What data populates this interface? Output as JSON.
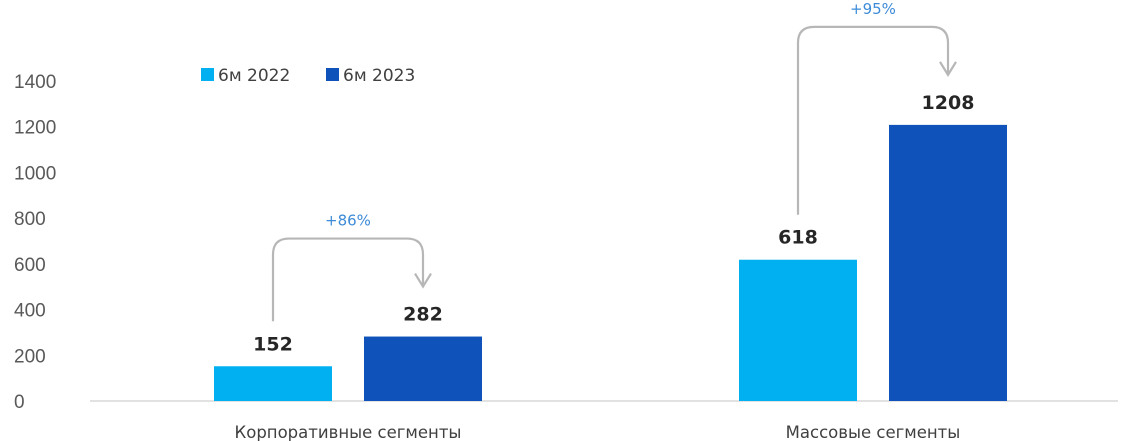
{
  "chart_data": {
    "type": "bar",
    "categories": [
      "Корпоративные сегменты",
      "Массовые сегменты"
    ],
    "series": [
      {
        "name": "6м 2022",
        "values": [
          152,
          618
        ]
      },
      {
        "name": "6м 2023",
        "values": [
          282,
          1208
        ]
      }
    ],
    "data_labels": [
      [
        "152",
        "618"
      ],
      [
        "282",
        "1208"
      ]
    ],
    "growth_labels": [
      "+86%",
      "+95%"
    ],
    "yticks": [
      "0",
      "200",
      "400",
      "600",
      "800",
      "1000",
      "1200",
      "1400"
    ],
    "ylim": [
      0,
      1400
    ],
    "legend_position": "top-left",
    "grid": false
  },
  "colors": {
    "series": [
      "#00b0f0",
      "#0f52ba"
    ],
    "arrow": "#b7b7b7",
    "growth_text": "#3d8bd8"
  }
}
